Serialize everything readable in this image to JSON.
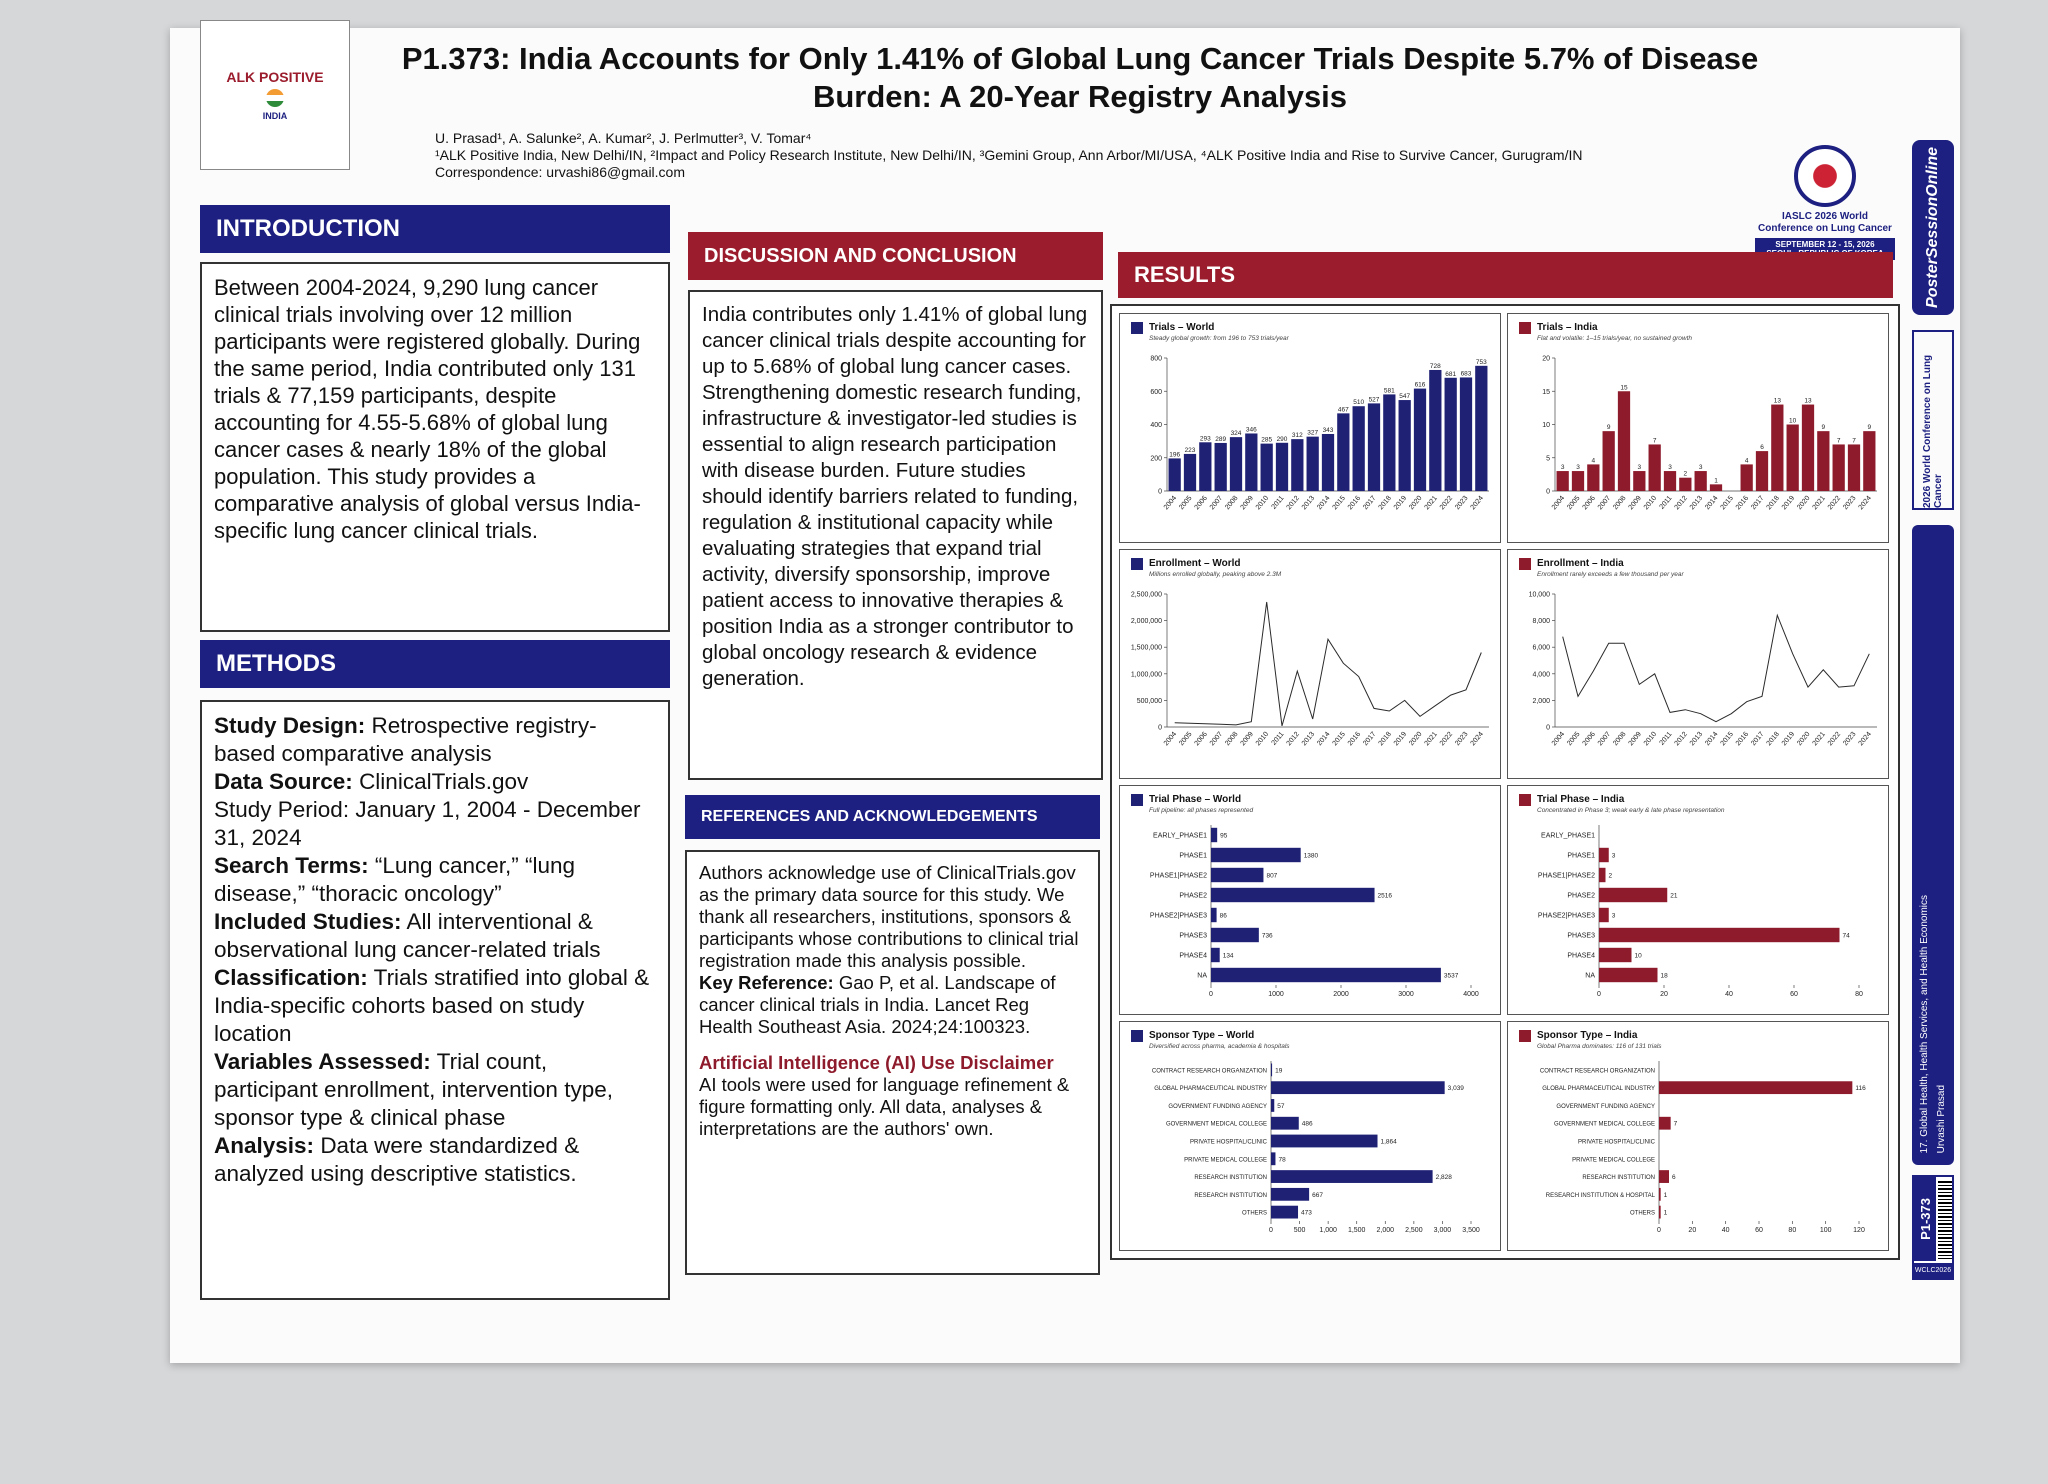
{
  "header": {
    "logo_name": "ALK POSITIVE",
    "logo_country": "INDIA",
    "title": "P1.373: India Accounts for Only 1.41% of Global Lung Cancer Trials Despite 5.7% of Disease Burden: A 20-Year Registry Analysis",
    "authors": "U. Prasad¹, A. Salunke², A. Kumar², J. Perlmutter³, V. Tomar⁴",
    "affiliations": "¹ALK Positive India, New Delhi/IN, ²Impact and Policy Research Institute, New Delhi/IN, ³Gemini Group, Ann Arbor/MI/USA, ⁴ALK Positive India and Rise to Survive Cancer, Gurugram/IN",
    "correspondence": "Correspondence: urvashi86@gmail.com"
  },
  "conference": {
    "name": "IASLC 2026 World Conference on Lung Cancer",
    "dates": "SEPTEMBER 12 - 15, 2026",
    "location": "SEOUL, REPUBLIC OF KOREA"
  },
  "introduction": {
    "heading": "INTRODUCTION",
    "text": "Between 2004-2024, 9,290 lung cancer clinical trials involving over 12 million participants were registered globally. During the same period, India contributed only 131 trials & 77,159 participants, despite accounting for 4.55-5.68% of global lung cancer cases & nearly 18% of the global population. This study provides a comparative analysis of global versus India-specific lung cancer clinical trials."
  },
  "methods": {
    "heading": "METHODS",
    "items": [
      {
        "label": "Study Design:",
        "text": "Retrospective registry-based comparative analysis"
      },
      {
        "label": "Data Source:",
        "text": "ClinicalTrials.gov"
      },
      {
        "text": "Study Period: January 1, 2004 - December 31, 2024"
      },
      {
        "label": "Search Terms:",
        "text": "“Lung cancer,” “lung disease,” “thoracic oncology”"
      },
      {
        "label": "Included Studies:",
        "text": "All interventional & observational lung cancer-related trials"
      },
      {
        "label": "Classification:",
        "text": "Trials stratified into global & India-specific cohorts based on study location"
      },
      {
        "label": "Variables Assessed:",
        "text": "Trial count, participant enrollment, intervention type, sponsor type & clinical phase"
      },
      {
        "label": "Analysis:",
        "text": "Data were standardized & analyzed using descriptive statistics."
      }
    ]
  },
  "discussion": {
    "heading": "DISCUSSION AND CONCLUSION",
    "text": "India contributes only 1.41% of global lung cancer clinical trials despite accounting for up to 5.68% of global lung cancer cases. Strengthening domestic research funding, infrastructure & investigator-led studies is essential to align research participation with disease burden. Future studies should identify barriers related to funding, regulation & institutional capacity while evaluating strategies that expand trial activity, diversify sponsorship, improve patient access to innovative therapies & position India as a stronger contributor to global oncology research & evidence generation."
  },
  "references": {
    "heading": "REFERENCES AND ACKNOWLEDGEMENTS",
    "acknowledgement": "Authors acknowledge use of ClinicalTrials.gov as the primary data source for this study. We thank all researchers, institutions, sponsors & participants whose contributions to clinical trial registration made this analysis possible.",
    "key_reference_label": "Key Reference:",
    "key_reference": "Gao P, et al. Landscape of cancer clinical trials in India. Lancet Reg Health Southeast Asia. 2024;24:100323.",
    "ai_heading": "Artificial Intelligence (AI) Use Disclaimer",
    "ai_text": "AI tools were used for language refinement & figure formatting only. All data, analyses & interpretations are the authors' own."
  },
  "results": {
    "heading": "RESULTS"
  },
  "sidebar": {
    "brand": "PosterSessionOnline",
    "conference": "2026 World Conference on Lung Cancer",
    "track": "17. Global Health, Health Services, and Health Economics",
    "presenter": "Urvashi Prasad",
    "poster_id": "P1-373",
    "tag": "WCLC2026"
  },
  "chart_data": [
    {
      "type": "bar",
      "title": "Trials – World",
      "subtitle": "Steady global growth: from 196 to 753 trials/year",
      "color": "#1f2175",
      "categories": [
        "2004",
        "2005",
        "2006",
        "2007",
        "2008",
        "2009",
        "2010",
        "2011",
        "2012",
        "2013",
        "2014",
        "2015",
        "2016",
        "2017",
        "2018",
        "2019",
        "2020",
        "2021",
        "2022",
        "2023",
        "2024"
      ],
      "values": [
        196,
        223,
        293,
        289,
        324,
        346,
        285,
        290,
        312,
        327,
        343,
        467,
        510,
        527,
        581,
        547,
        616,
        728,
        681,
        683,
        753
      ],
      "ylim": [
        0,
        800
      ],
      "yticks": [
        0,
        200,
        400,
        600,
        800
      ]
    },
    {
      "type": "bar",
      "title": "Trials – India",
      "subtitle": "Flat and volatile: 1–15 trials/year, no sustained growth",
      "color": "#8e1b2c",
      "categories": [
        "2004",
        "2005",
        "2006",
        "2007",
        "2008",
        "2009",
        "2010",
        "2011",
        "2012",
        "2013",
        "2014",
        "2015",
        "2016",
        "2017",
        "2018",
        "2019",
        "2020",
        "2021",
        "2022",
        "2023",
        "2024"
      ],
      "values": [
        3,
        3,
        4,
        9,
        15,
        3,
        7,
        3,
        2,
        3,
        1,
        0,
        4,
        6,
        13,
        10,
        13,
        9,
        7,
        7,
        9
      ],
      "ylim": [
        0,
        20
      ],
      "yticks": [
        0,
        5,
        10,
        15,
        20
      ]
    },
    {
      "type": "line",
      "title": "Enrollment – World",
      "subtitle": "Millions enrolled globally, peaking above 2.3M",
      "color": "#2a2a2a",
      "categories": [
        "2004",
        "2005",
        "2006",
        "2007",
        "2008",
        "2009",
        "2010",
        "2011",
        "2012",
        "2013",
        "2014",
        "2015",
        "2016",
        "2017",
        "2018",
        "2019",
        "2020",
        "2021",
        "2022",
        "2023",
        "2024"
      ],
      "values": [
        80000,
        70000,
        60000,
        50000,
        40000,
        100000,
        2350000,
        20000,
        1050000,
        150000,
        1650000,
        1200000,
        950000,
        350000,
        300000,
        500000,
        200000,
        400000,
        600000,
        700000,
        1400000
      ],
      "ylim": [
        0,
        2500000
      ],
      "yticks": [
        0,
        {
          "value": 500000,
          "label": "500,000"
        },
        {
          "value": 1000000,
          "label": "1,000,000"
        },
        {
          "value": 1500000,
          "label": "1,500,000"
        },
        {
          "value": 2000000,
          "label": "2,000,000"
        },
        {
          "value": 2500000,
          "label": "2,500,000"
        }
      ]
    },
    {
      "type": "line",
      "title": "Enrollment – India",
      "subtitle": "Enrollment rarely exceeds a few thousand per year",
      "color": "#2a2a2a",
      "categories": [
        "2004",
        "2005",
        "2006",
        "2007",
        "2008",
        "2009",
        "2010",
        "2011",
        "2012",
        "2013",
        "2014",
        "2015",
        "2016",
        "2017",
        "2018",
        "2019",
        "2020",
        "2021",
        "2022",
        "2023",
        "2024"
      ],
      "values": [
        6800,
        2300,
        4200,
        6300,
        6300,
        3200,
        4000,
        1100,
        1300,
        1000,
        400,
        1000,
        1900,
        2300,
        8400,
        5500,
        3000,
        4300,
        3000,
        3100,
        5500
      ],
      "ylim": [
        0,
        10000
      ],
      "yticks": [
        0,
        {
          "value": 2000,
          "label": "2,000"
        },
        {
          "value": 4000,
          "label": "4,000"
        },
        {
          "value": 6000,
          "label": "6,000"
        },
        {
          "value": 8000,
          "label": "8,000"
        },
        {
          "value": 10000,
          "label": "10,000"
        }
      ]
    },
    {
      "type": "barh",
      "title": "Trial Phase – World",
      "subtitle": "Full pipeline: all phases represented",
      "color": "#1f2175",
      "categories": [
        "EARLY_PHASE1",
        "PHASE1",
        "PHASE1|PHASE2",
        "PHASE2",
        "PHASE2|PHASE3",
        "PHASE3",
        "PHASE4",
        "NA"
      ],
      "values": [
        95,
        1380,
        807,
        2516,
        86,
        736,
        134,
        3537
      ],
      "xlim": [
        0,
        4000
      ],
      "xticks": [
        0,
        1000,
        2000,
        3000,
        4000
      ]
    },
    {
      "type": "barh",
      "title": "Trial Phase – India",
      "subtitle": "Concentrated in Phase 3; weak early & late phase representation",
      "color": "#8e1b2c",
      "categories": [
        "EARLY_PHASE1",
        "PHASE1",
        "PHASE1|PHASE2",
        "PHASE2",
        "PHASE2|PHASE3",
        "PHASE3",
        "PHASE4",
        "NA"
      ],
      "values": [
        0,
        3,
        2,
        21,
        3,
        74,
        10,
        18
      ],
      "xlim": [
        0,
        80
      ],
      "xticks": [
        0,
        20,
        40,
        60,
        80
      ]
    },
    {
      "type": "barh",
      "title": "Sponsor Type – World",
      "subtitle": "Diversified across pharma, academia & hospitals",
      "color": "#1f2175",
      "categories": [
        "CONTRACT RESEARCH ORGANIZATION",
        "GLOBAL PHARMACEUTICAL INDUSTRY",
        "GOVERNMENT FUNDING AGENCY",
        "GOVERNMENT MEDICAL COLLEGE",
        "PRIVATE HOSPITAL/CLINIC",
        "PRIVATE MEDICAL COLLEGE",
        "RESEARCH INSTITUTION",
        "RESEARCH INSTITUTION",
        "OTHERS"
      ],
      "values": [
        19,
        3039,
        57,
        486,
        1864,
        78,
        2828,
        667,
        473
      ],
      "value_labels": [
        "19",
        "3,039",
        "57",
        "486",
        "1,864",
        "78",
        "2,828",
        "667",
        "473"
      ],
      "xlim": [
        0,
        3500
      ],
      "xticks": [
        0,
        500,
        {
          "value": 1000,
          "label": "1,000"
        },
        {
          "value": 1500,
          "label": "1,500"
        },
        {
          "value": 2000,
          "label": "2,000"
        },
        {
          "value": 2500,
          "label": "2,500"
        },
        {
          "value": 3000,
          "label": "3,000"
        },
        {
          "value": 3500,
          "label": "3,500"
        }
      ]
    },
    {
      "type": "barh",
      "title": "Sponsor Type – India",
      "subtitle": "Global Pharma dominates: 116 of 131 trials",
      "color": "#8e1b2c",
      "categories": [
        "CONTRACT RESEARCH ORGANIZATION",
        "GLOBAL PHARMACEUTICAL INDUSTRY",
        "GOVERNMENT FUNDING AGENCY",
        "GOVERNMENT MEDICAL COLLEGE",
        "PRIVATE HOSPITAL/CLINIC",
        "PRIVATE MEDICAL COLLEGE",
        "RESEARCH INSTITUTION",
        "RESEARCH INSTITUTION & HOSPITAL",
        "OTHERS"
      ],
      "values": [
        0,
        116,
        0,
        7,
        0,
        0,
        6,
        1,
        1
      ],
      "xlim": [
        0,
        120
      ],
      "xticks": [
        0,
        20,
        40,
        60,
        80,
        100,
        120
      ]
    }
  ]
}
